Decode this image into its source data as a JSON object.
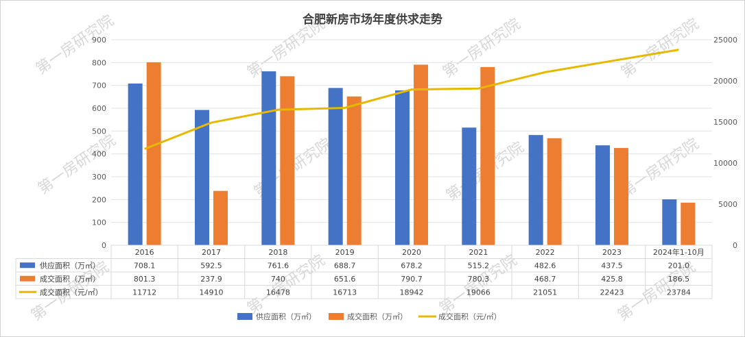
{
  "chart_data": {
    "type": "bar",
    "title": "合肥新房市场年度供求走势",
    "categories": [
      "2016",
      "2017",
      "2018",
      "2019",
      "2020",
      "2021",
      "2022",
      "2023",
      "2024年1-10月"
    ],
    "series": [
      {
        "name": "供应面积（万㎡）",
        "type": "bar",
        "axis": "left",
        "color": "#4472C4",
        "values": [
          708.1,
          592.5,
          761.6,
          688.7,
          678.2,
          515.2,
          482.6,
          437.5,
          201.0
        ],
        "labels": [
          "708.1",
          "592.5",
          "761.6",
          "688.7",
          "678.2",
          "515.2",
          "482.6",
          "437.5",
          "201.0"
        ]
      },
      {
        "name": "成交面积（万㎡）",
        "type": "bar",
        "axis": "left",
        "color": "#ED7D31",
        "values": [
          801.3,
          237.9,
          740,
          651.6,
          790.7,
          780.3,
          468.7,
          425.8,
          186.5
        ],
        "labels": [
          "801.3",
          "237.9",
          "740",
          "651.6",
          "790.7",
          "780.3",
          "468.7",
          "425.8",
          "186.5"
        ]
      },
      {
        "name": "成交面积（元/㎡）",
        "type": "line",
        "axis": "right",
        "color": "#E6B800",
        "values": [
          11712,
          14910,
          16478,
          16713,
          18942,
          19066,
          21051,
          22423,
          23784
        ],
        "labels": [
          "11712",
          "14910",
          "16478",
          "16713",
          "18942",
          "19066",
          "21051",
          "22423",
          "23784"
        ]
      }
    ],
    "ylim_left": [
      0,
      900
    ],
    "yticks_left": [
      "0",
      "100",
      "200",
      "300",
      "400",
      "500",
      "600",
      "700",
      "800",
      "900"
    ],
    "ylim_right": [
      0,
      25000
    ],
    "yticks_right": [
      "0",
      "5000",
      "10000",
      "15000",
      "20000",
      "25000"
    ],
    "grid": true,
    "legend_position": "bottom",
    "data_table": true
  },
  "watermark": "第一房研究院"
}
